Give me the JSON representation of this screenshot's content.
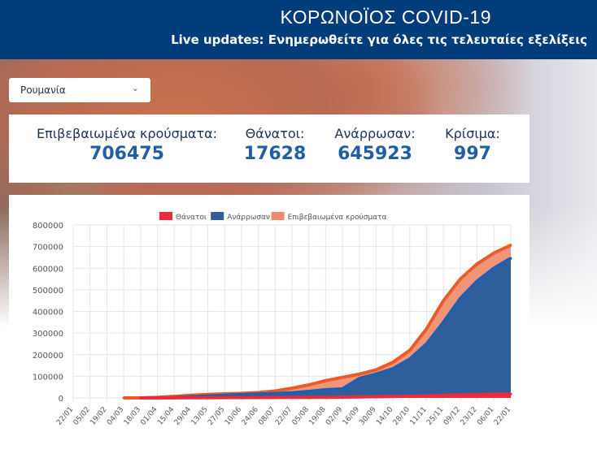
{
  "header": {
    "title": "ΚΟΡΩΝΟΪΟΣ COVID-19",
    "subtitle": "Live updates: Ενημερωθείτε για όλες τις τελευταίες εξελίξεις"
  },
  "country_select": {
    "value": "Ρουμανία"
  },
  "stats": [
    {
      "label": "Επιβεβαιωμένα κρούσματα:",
      "value": "706475"
    },
    {
      "label": "Θάνατοι:",
      "value": "17628"
    },
    {
      "label": "Ανάρρωσαν:",
      "value": "645923"
    },
    {
      "label": "Κρίσιμα:",
      "value": "997"
    }
  ],
  "chart_data": {
    "type": "area",
    "title": "",
    "xlabel": "",
    "ylabel": "",
    "ylim": [
      0,
      800000
    ],
    "yticks": [
      "0",
      "100000",
      "200000",
      "300000",
      "400000",
      "500000",
      "600000",
      "700000",
      "800000"
    ],
    "grid": true,
    "legend": "top",
    "categories": [
      "22/01",
      "05/02",
      "19/02",
      "04/03",
      "18/03",
      "01/04",
      "15/04",
      "29/04",
      "13/05",
      "27/05",
      "10/06",
      "24/06",
      "08/07",
      "22/07",
      "05/08",
      "19/08",
      "02/09",
      "16/09",
      "30/09",
      "14/10",
      "28/10",
      "11/11",
      "25/11",
      "09/12",
      "23/12",
      "06/01",
      "22/01"
    ],
    "series": [
      {
        "name": "Θάνατοι",
        "color": "#ee2a3a",
        "values": [
          null,
          null,
          null,
          null,
          0,
          100,
          400,
          800,
          1100,
          1300,
          1500,
          1700,
          1900,
          2200,
          2500,
          3000,
          3800,
          4600,
          5500,
          6500,
          7800,
          9500,
          11500,
          13500,
          15500,
          16700,
          17628
        ]
      },
      {
        "name": "Ανάρρωσαν",
        "color": "#2f5f9a",
        "values": [
          null,
          null,
          null,
          null,
          0,
          300,
          1500,
          5000,
          9000,
          12000,
          15000,
          18000,
          20000,
          24000,
          30000,
          38000,
          42000,
          90000,
          110000,
          135000,
          180000,
          250000,
          350000,
          460000,
          540000,
          600000,
          645923
        ]
      },
      {
        "name": "Επιβεβαιωμένα κρούσματα",
        "color": "#f08a6a",
        "values": [
          null,
          null,
          null,
          3,
          200,
          2500,
          7000,
          12000,
          16000,
          19000,
          21000,
          25000,
          32000,
          45000,
          60000,
          80000,
          95000,
          110000,
          130000,
          165000,
          220000,
          320000,
          450000,
          550000,
          620000,
          670000,
          706475
        ]
      }
    ]
  }
}
